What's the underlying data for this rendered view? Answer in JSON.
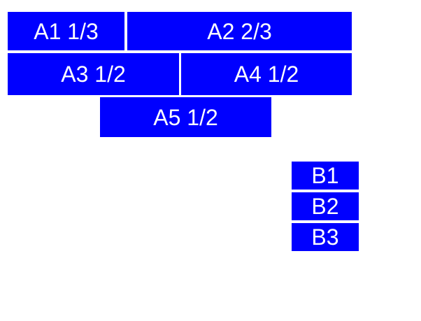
{
  "page": {
    "background_color": "#ffffff"
  },
  "style": {
    "box_fill_color": "#0000ff",
    "box_label_color": "#ffffff"
  },
  "group_a": {
    "items": [
      {
        "id": "A1",
        "fraction": "1/3",
        "label": "A1 1/3"
      },
      {
        "id": "A2",
        "fraction": "2/3",
        "label": "A2 2/3"
      },
      {
        "id": "A3",
        "fraction": "1/2",
        "label": "A3 1/2"
      },
      {
        "id": "A4",
        "fraction": "1/2",
        "label": "A4 1/2"
      },
      {
        "id": "A5",
        "fraction": "1/2",
        "label": "A5 1/2"
      }
    ]
  },
  "group_b": {
    "items": [
      {
        "id": "B1",
        "label": "B1"
      },
      {
        "id": "B2",
        "label": "B2"
      },
      {
        "id": "B3",
        "label": "B3"
      }
    ]
  }
}
